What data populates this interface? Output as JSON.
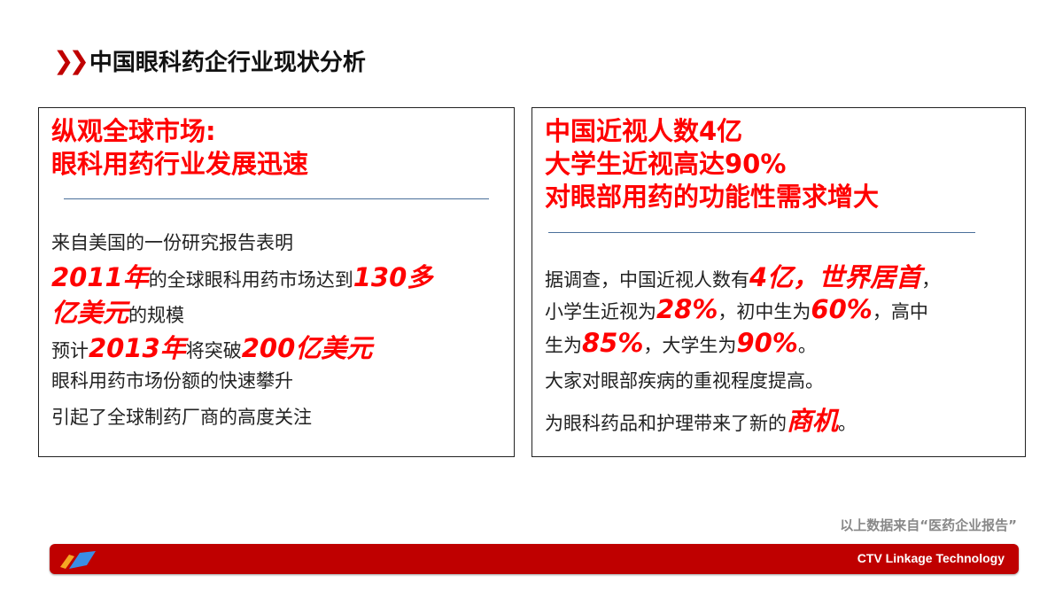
{
  "title": "中国眼科药企行业现状分析",
  "left": {
    "heading": [
      "纵观全球市场:",
      "眼科用药行业发展迅速"
    ],
    "lines": [
      [
        {
          "t": "来自美国的一份研究报告表明"
        }
      ],
      [
        {
          "t": "2011年",
          "em": true
        },
        {
          "t": "的全球眼科用药市场达到"
        },
        {
          "t": "130多",
          "em": true
        }
      ],
      [
        {
          "t": "亿美元",
          "em": true
        },
        {
          "t": "的规模"
        }
      ],
      [
        {
          "t": "预计"
        },
        {
          "t": "2013年",
          "em": true
        },
        {
          "t": "将突破"
        },
        {
          "t": "200亿美元",
          "em": true
        }
      ],
      [
        {
          "t": "眼科用药市场份额的快速攀升"
        }
      ],
      [
        {
          "t": "引起了全球制药厂商的高度关注"
        }
      ]
    ]
  },
  "right": {
    "heading": [
      "中国近视人数4亿",
      "大学生近视高达90%",
      "对眼部用药的功能性需求增大"
    ],
    "lines": [
      [
        {
          "t": "据调查，中国近视人数有"
        },
        {
          "t": "4亿，世界居首",
          "em": true
        },
        {
          "t": "，"
        }
      ],
      [
        {
          "t": "小学生近视为"
        },
        {
          "t": "28%",
          "em": true
        },
        {
          "t": "，初中生为"
        },
        {
          "t": "60%",
          "em": true
        },
        {
          "t": "，高中"
        }
      ],
      [
        {
          "t": "生为"
        },
        {
          "t": "85%",
          "em": true
        },
        {
          "t": "，大学生为"
        },
        {
          "t": "90%",
          "em": true
        },
        {
          "t": "。"
        }
      ],
      [
        {
          "t": "大家对眼部疾病的重视程度提高。"
        }
      ],
      [
        {
          "t": "为眼科药品和护理带来了新的"
        },
        {
          "t": "商机",
          "em": true
        },
        {
          "t": "。"
        }
      ]
    ]
  },
  "source_note": "以上数据来自“医药企业报告”",
  "footer": {
    "brand": "CTV Linkage Technology",
    "bar_color": "#bf0000"
  },
  "colors": {
    "accent": "#ff0000",
    "title_chevron": "#c00000"
  }
}
